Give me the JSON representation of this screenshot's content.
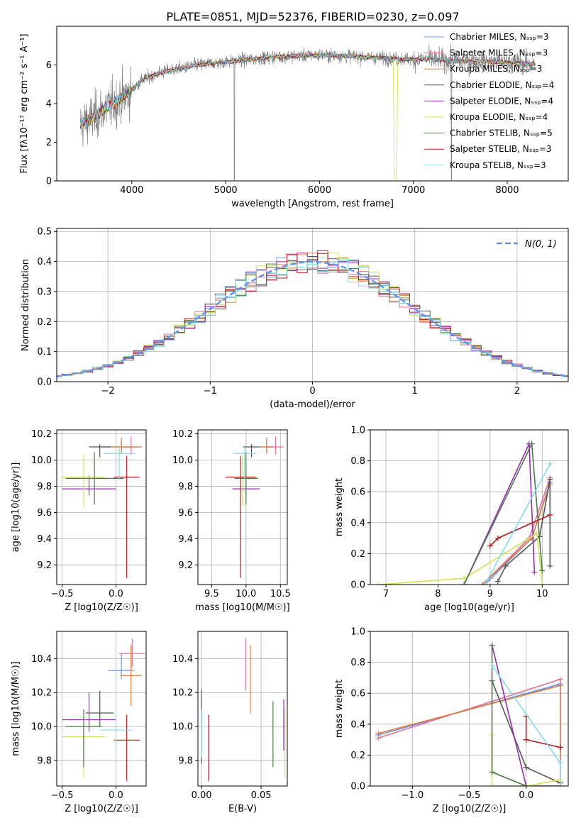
{
  "title": "PLATE=0851, MJD=52376, FIBERID=0230, z=0.097",
  "chart_data": [
    {
      "type": "line",
      "id": "spectrum",
      "xlabel": "wavelength [Angstrom, rest frame]",
      "ylabel": "Flux [fλ10⁻¹⁷ erg cm⁻² s⁻¹ A⁻¹]",
      "xlim": [
        3200,
        8650
      ],
      "ylim": [
        0,
        8
      ],
      "xticks": [
        4000,
        5000,
        6000,
        7000,
        8000
      ],
      "yticks": [
        0,
        2,
        4,
        6
      ],
      "grid": false,
      "legend_position": "top-right",
      "data_color": "#808080",
      "continuum": {
        "x": [
          3450,
          3600,
          3700,
          3800,
          3900,
          4000,
          4100,
          4300,
          4500,
          4700,
          4900,
          5100,
          5300,
          5500,
          5700,
          5900,
          6100,
          6300,
          6500,
          6700,
          6900,
          7100,
          7300,
          7500,
          7700,
          7900,
          8100,
          8300
        ],
        "y": [
          2.9,
          3.3,
          3.7,
          4.0,
          4.3,
          4.7,
          5.2,
          5.6,
          5.8,
          6.0,
          6.1,
          6.2,
          6.3,
          6.4,
          6.45,
          6.5,
          6.5,
          6.45,
          6.4,
          6.35,
          6.3,
          6.3,
          6.25,
          6.2,
          6.2,
          6.15,
          6.1,
          6.05
        ]
      },
      "series": [
        {
          "name": "Chabrier MILES, N_SSP=3",
          "color": "#6495ed"
        },
        {
          "name": "Salpeter MILES, N_SSP=3",
          "color": "#e0709e"
        },
        {
          "name": "Kroupa MILES, N_SSP=3",
          "color": "#e07b39"
        },
        {
          "name": "Chabrier ELODIE, N_SSP=4",
          "color": "#555555"
        },
        {
          "name": "Salpeter ELODIE, N_SSP=4",
          "color": "#9a2bb0"
        },
        {
          "name": "Kroupa ELODIE, N_SSP=4",
          "color": "#d4e157"
        },
        {
          "name": "Chabrier STELIB, N_SSP=5",
          "color": "#4c7a4c"
        },
        {
          "name": "Salpeter STELIB, N_SSP=3",
          "color": "#b71c1c"
        },
        {
          "name": "Kroupa STELIB, N_SSP=3",
          "color": "#80deea"
        }
      ]
    },
    {
      "type": "line",
      "id": "residuals",
      "xlabel": "(data-model)/error",
      "ylabel": "Normed distribution",
      "xlim": [
        -2.5,
        2.5
      ],
      "ylim": [
        0,
        0.51
      ],
      "xticks": [
        -2,
        -1,
        0,
        1,
        2
      ],
      "yticks": [
        0.0,
        0.1,
        0.2,
        0.3,
        0.4,
        0.5
      ],
      "grid": true,
      "legend_position": "top-right",
      "gaussian": {
        "name": "N(0, 1)",
        "color": "#6495ed"
      }
    },
    {
      "type": "scatter",
      "id": "age-Z",
      "xlabel": "Z [log10(Z/Z☉)]",
      "ylabel": "age [log10(age/yr)]",
      "xlim": [
        -0.55,
        0.28
      ],
      "ylim": [
        9.05,
        10.23
      ],
      "xticks": [
        -0.5,
        0.0
      ],
      "yticks": [
        9.2,
        9.4,
        9.6,
        9.8,
        10.0,
        10.2
      ],
      "grid": true,
      "points": [
        {
          "model": "Chabrier MILES",
          "x": 0.05,
          "xerr": [
            0.12,
            0.12
          ],
          "y": 10.1,
          "yerr": [
            0.05,
            0.06
          ]
        },
        {
          "model": "Salpeter MILES",
          "x": 0.14,
          "xerr": [
            0.1,
            0.1
          ],
          "y": 10.1,
          "yerr": [
            0.06,
            0.08
          ]
        },
        {
          "model": "Kroupa MILES",
          "x": 0.05,
          "xerr": [
            0.17,
            0.17
          ],
          "y": 10.1,
          "yerr": [
            0.05,
            0.07
          ]
        },
        {
          "model": "Chabrier ELODIE",
          "x": -0.15,
          "xerr": [
            0.1,
            0.1
          ],
          "y": 10.1,
          "yerr": [
            0.08,
            0.02
          ]
        },
        {
          "model": "Salpeter ELODIE",
          "x": -0.25,
          "xerr": [
            0.25,
            0.25
          ],
          "y": 9.78,
          "yerr": [
            0.05,
            0.1
          ]
        },
        {
          "model": "Kroupa ELODIE",
          "x": -0.3,
          "xerr": [
            0.2,
            0.2
          ],
          "y": 9.87,
          "yerr": [
            0.23,
            0.17
          ]
        },
        {
          "model": "Chabrier STELIB",
          "x": -0.2,
          "xerr": [
            0.27,
            0.27
          ],
          "y": 9.86,
          "yerr": [
            0.2,
            0.2
          ]
        },
        {
          "model": "Salpeter STELIB",
          "x": 0.1,
          "xerr": [
            0.12,
            0.12
          ],
          "y": 9.87,
          "yerr": [
            0.77,
            0.16
          ]
        },
        {
          "model": "Kroupa STELIB",
          "x": 0.03,
          "xerr": [
            0.15,
            0.15
          ],
          "y": 10.05,
          "yerr": [
            0.2,
            0.05
          ]
        }
      ]
    },
    {
      "type": "scatter",
      "id": "age-mass",
      "xlabel": "mass [log10(M/M☉)]",
      "ylabel": "",
      "xlim": [
        9.3,
        10.6
      ],
      "ylim": [
        9.05,
        10.23
      ],
      "xticks": [
        9.5,
        10.0,
        10.5
      ],
      "yticks": [
        9.2,
        9.4,
        9.6,
        9.8,
        10.0,
        10.2
      ],
      "grid": true,
      "points": [
        {
          "model": "Chabrier MILES",
          "x": 10.3,
          "xerr": [
            0.1,
            0.1
          ],
          "y": 10.1,
          "yerr": [
            0.05,
            0.06
          ]
        },
        {
          "model": "Salpeter MILES",
          "x": 10.43,
          "xerr": [
            0.12,
            0.12
          ],
          "y": 10.1,
          "yerr": [
            0.06,
            0.08
          ]
        },
        {
          "model": "Kroupa MILES",
          "x": 10.3,
          "xerr": [
            0.1,
            0.1
          ],
          "y": 10.1,
          "yerr": [
            0.05,
            0.07
          ]
        },
        {
          "model": "Chabrier ELODIE",
          "x": 10.08,
          "xerr": [
            0.12,
            0.12
          ],
          "y": 10.1,
          "yerr": [
            0.08,
            0.02
          ]
        },
        {
          "model": "Salpeter ELODIE",
          "x": 10.0,
          "xerr": [
            0.2,
            0.2
          ],
          "y": 9.78,
          "yerr": [
            0.05,
            0.1
          ]
        },
        {
          "model": "Kroupa ELODIE",
          "x": 9.95,
          "xerr": [
            0.22,
            0.22
          ],
          "y": 9.87,
          "yerr": [
            0.23,
            0.17
          ]
        },
        {
          "model": "Chabrier STELIB",
          "x": 10.0,
          "xerr": [
            0.17,
            0.17
          ],
          "y": 9.86,
          "yerr": [
            0.2,
            0.2
          ]
        },
        {
          "model": "Salpeter STELIB",
          "x": 9.92,
          "xerr": [
            0.22,
            0.22
          ],
          "y": 9.87,
          "yerr": [
            0.77,
            0.16
          ]
        },
        {
          "model": "Kroupa STELIB",
          "x": 9.98,
          "xerr": [
            0.17,
            0.17
          ],
          "y": 10.05,
          "yerr": [
            0.2,
            0.05
          ]
        }
      ]
    },
    {
      "type": "line",
      "id": "weight-age",
      "xlabel": "age [log10(age/yr)]",
      "ylabel": "mass weight",
      "xlim": [
        6.7,
        10.5
      ],
      "ylim": [
        0,
        1.0
      ],
      "xticks": [
        7,
        8,
        9,
        10
      ],
      "yticks": [
        0.0,
        0.2,
        0.4,
        0.6,
        0.8,
        1.0
      ],
      "grid": true,
      "lines": [
        {
          "model": "Chabrier MILES",
          "x": [
            8.9,
            9.8,
            10.15
          ],
          "y": [
            0.0,
            0.3,
            0.66
          ]
        },
        {
          "model": "Salpeter MILES",
          "x": [
            8.85,
            9.75,
            10.15
          ],
          "y": [
            0.0,
            0.3,
            0.69
          ]
        },
        {
          "model": "Kroupa MILES",
          "x": [
            8.85,
            9.8,
            10.15
          ],
          "y": [
            0.0,
            0.3,
            0.65
          ]
        },
        {
          "model": "Chabrier ELODIE",
          "x": [
            9.15,
            9.3,
            9.95,
            10.15,
            10.15
          ],
          "y": [
            0.02,
            0.12,
            0.31,
            0.68,
            0.12
          ]
        },
        {
          "model": "Salpeter ELODIE",
          "x": [
            8.5,
            9.75,
            9.85
          ],
          "y": [
            0.0,
            0.91,
            0.08
          ]
        },
        {
          "model": "Kroupa ELODIE",
          "x": [
            6.85,
            8.5,
            9.9,
            10.0
          ],
          "y": [
            0.0,
            0.04,
            0.33,
            0.0
          ]
        },
        {
          "model": "Chabrier STELIB",
          "x": [
            8.5,
            9.8,
            10.0
          ],
          "y": [
            0.0,
            0.91,
            0.09
          ]
        },
        {
          "model": "Salpeter STELIB",
          "x": [
            9.0,
            9.15,
            10.15
          ],
          "y": [
            0.25,
            0.3,
            0.45
          ]
        },
        {
          "model": "Kroupa STELIB",
          "x": [
            8.9,
            10.15
          ],
          "y": [
            0.0,
            0.78
          ]
        }
      ]
    },
    {
      "type": "scatter",
      "id": "mass-Z",
      "xlabel": "Z [log10(Z/Z☉)]",
      "ylabel": "mass [log10(M/M☉)]",
      "xlim": [
        -0.55,
        0.28
      ],
      "ylim": [
        9.65,
        10.56
      ],
      "xticks": [
        -0.5,
        0.0
      ],
      "yticks": [
        9.8,
        10.0,
        10.2,
        10.4
      ],
      "grid": true,
      "points": [
        {
          "model": "Chabrier MILES",
          "x": 0.05,
          "xerr": [
            0.12,
            0.12
          ],
          "y": 10.33,
          "yerr": [
            0.05,
            0.1
          ]
        },
        {
          "model": "Salpeter MILES",
          "x": 0.15,
          "xerr": [
            0.12,
            0.12
          ],
          "y": 10.43,
          "yerr": [
            0.08,
            0.09
          ]
        },
        {
          "model": "Kroupa MILES",
          "x": 0.14,
          "xerr": [
            0.1,
            0.1
          ],
          "y": 10.3,
          "yerr": [
            0.18,
            0.18
          ]
        },
        {
          "model": "Chabrier ELODIE",
          "x": -0.15,
          "xerr": [
            0.13,
            0.13
          ],
          "y": 10.08,
          "yerr": [
            0.08,
            0.13
          ]
        },
        {
          "model": "Salpeter ELODIE",
          "x": -0.25,
          "xerr": [
            0.25,
            0.25
          ],
          "y": 10.04,
          "yerr": [
            0.07,
            0.16
          ]
        },
        {
          "model": "Kroupa ELODIE",
          "x": -0.3,
          "xerr": [
            0.2,
            0.2
          ],
          "y": 9.94,
          "yerr": [
            0.24,
            0.1
          ]
        },
        {
          "model": "Chabrier STELIB",
          "x": -0.3,
          "xerr": [
            0.17,
            0.17
          ],
          "y": 10.0,
          "yerr": [
            0.24,
            0.1
          ]
        },
        {
          "model": "Salpeter STELIB",
          "x": 0.1,
          "xerr": [
            0.12,
            0.12
          ],
          "y": 9.92,
          "yerr": [
            0.24,
            0.15
          ]
        },
        {
          "model": "Kroupa STELIB",
          "x": 0.0,
          "xerr": [
            0.15,
            0.15
          ],
          "y": 9.98,
          "yerr": [
            0.16,
            0.12
          ]
        }
      ]
    },
    {
      "type": "scatter",
      "id": "mass-EBV",
      "xlabel": "E(B-V)",
      "ylabel": "",
      "xlim": [
        -0.003,
        0.072
      ],
      "ylim": [
        9.65,
        10.56
      ],
      "xticks": [
        0.0,
        0.05
      ],
      "yticks": [
        9.8,
        10.0,
        10.2,
        10.4
      ],
      "grid": true,
      "points": [
        {
          "model": "Chabrier MILES",
          "x": 0.0,
          "y": 10.0,
          "yerr": [
            0.15,
            0.1
          ]
        },
        {
          "model": "Salpeter MILES",
          "x": 0.037,
          "y": 10.33,
          "yerr": [
            0.12,
            0.19
          ]
        },
        {
          "model": "Kroupa MILES",
          "x": 0.041,
          "y": 10.3,
          "yerr": [
            0.22,
            0.18
          ]
        },
        {
          "model": "Chabrier ELODIE",
          "x": 0.0,
          "y": 10.0,
          "yerr": [
            0.22,
            0.22
          ]
        },
        {
          "model": "Salpeter ELODIE",
          "x": 0.069,
          "y": 10.04,
          "yerr": [
            0.18,
            0.12
          ]
        },
        {
          "model": "Kroupa ELODIE",
          "x": 0.07,
          "y": 9.94,
          "yerr": [
            0.24,
            0.16
          ]
        },
        {
          "model": "Chabrier STELIB",
          "x": 0.06,
          "y": 10.0,
          "yerr": [
            0.24,
            0.15
          ]
        },
        {
          "model": "Salpeter STELIB",
          "x": 0.006,
          "y": 9.92,
          "yerr": [
            0.24,
            0.15
          ]
        },
        {
          "model": "Kroupa STELIB",
          "x": 0.0,
          "y": 9.98,
          "yerr": [
            0.16,
            0.12
          ]
        }
      ]
    },
    {
      "type": "line",
      "id": "weight-Z",
      "xlabel": "Z [log10(Z/Z☉)]",
      "ylabel": "mass weight",
      "xlim": [
        -1.37,
        0.37
      ],
      "ylim": [
        0,
        1.0
      ],
      "xticks": [
        -1.0,
        -0.5,
        0.0
      ],
      "yticks": [
        0.0,
        0.2,
        0.4,
        0.6,
        0.8,
        1.0
      ],
      "grid": true,
      "lines": [
        {
          "model": "Chabrier MILES",
          "x": [
            -1.3,
            0.3,
            0.3
          ],
          "y": [
            0.33,
            0.66,
            0.0
          ]
        },
        {
          "model": "Salpeter MILES",
          "x": [
            -1.3,
            0.3,
            0.3
          ],
          "y": [
            0.31,
            0.69,
            0.0
          ]
        },
        {
          "model": "Kroupa MILES",
          "x": [
            -1.3,
            0.3,
            0.3
          ],
          "y": [
            0.34,
            0.65,
            0.0
          ]
        },
        {
          "model": "Chabrier ELODIE",
          "x": [
            -0.3,
            0.0,
            0.0,
            0.3
          ],
          "y": [
            0.68,
            0.12,
            0.12,
            0.02
          ]
        },
        {
          "model": "Salpeter ELODIE",
          "x": [
            -0.3,
            0.0,
            0.3
          ],
          "y": [
            0.91,
            0.0,
            0.0
          ]
        },
        {
          "model": "Kroupa ELODIE",
          "x": [
            -0.3,
            -0.3,
            0.0,
            0.3
          ],
          "y": [
            0.33,
            0.0,
            0.0,
            0.04
          ]
        },
        {
          "model": "Chabrier STELIB",
          "x": [
            -0.3,
            -0.3,
            0.0
          ],
          "y": [
            0.91,
            0.09,
            0.0
          ]
        },
        {
          "model": "Salpeter STELIB",
          "x": [
            0.0,
            0.0,
            0.0,
            0.3,
            0.3
          ],
          "y": [
            0.45,
            0.3,
            0.3,
            0.25,
            0.25
          ]
        },
        {
          "model": "Kroupa STELIB",
          "x": [
            -0.3,
            0.3,
            0.3
          ],
          "y": [
            0.78,
            0.15,
            0.0
          ]
        }
      ]
    }
  ]
}
